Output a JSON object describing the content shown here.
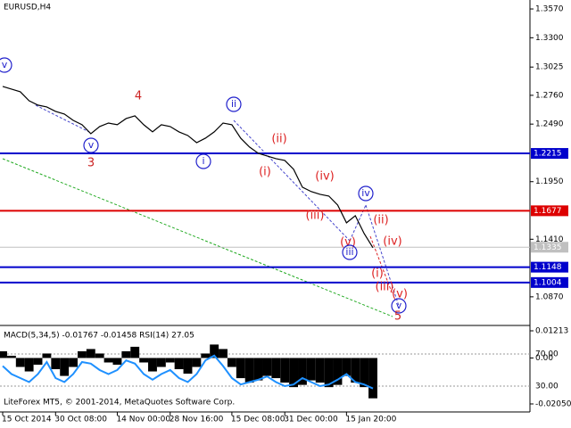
{
  "chart_data": [
    {
      "type": "line",
      "title": "EURUSD,H4",
      "categories": [
        "15 Oct 2014",
        null,
        null,
        null,
        null,
        null,
        "30 Oct 08:00",
        null,
        null,
        null,
        null,
        null,
        null,
        "14 Nov 00:00",
        null,
        null,
        null,
        null,
        null,
        "28 Nov 16:00",
        null,
        null,
        null,
        null,
        null,
        null,
        "15 Dec 08:00",
        null,
        null,
        null,
        null,
        null,
        "31 Dec 00:00",
        null,
        null,
        null,
        null,
        null,
        null,
        "15 Jan 20:00",
        null,
        null,
        null
      ],
      "values": [
        1.2843,
        1.2818,
        1.2793,
        1.2709,
        1.2668,
        1.2651,
        1.2609,
        1.2584,
        1.2525,
        1.2484,
        1.24,
        1.2467,
        1.25,
        1.2484,
        1.2542,
        1.2567,
        1.2484,
        1.2417,
        1.2484,
        1.2467,
        1.2417,
        1.2383,
        1.2316,
        1.2358,
        1.2417,
        1.25,
        1.2484,
        1.2358,
        1.2275,
        1.2216,
        1.2191,
        1.2166,
        1.2149,
        1.2066,
        1.1898,
        1.1857,
        1.1831,
        1.1815,
        1.1731,
        1.1564,
        1.1631,
        1.1464,
        1.133
      ],
      "color": "#000000",
      "ylim": [
        1.0618,
        1.3654
      ],
      "yticks": [
        {
          "value": 1.357,
          "label": "1.3570"
        },
        {
          "value": 1.33,
          "label": "1.3300"
        },
        {
          "value": 1.3025,
          "label": "1.3025"
        },
        {
          "value": 1.276,
          "label": "1.2760"
        },
        {
          "value": 1.249,
          "label": "1.2490"
        },
        {
          "value": 1.195,
          "label": "1.1950"
        },
        {
          "value": 1.141,
          "label": "1.1410"
        },
        {
          "value": 1.087,
          "label": "1.0870"
        }
      ],
      "levels": [
        {
          "value": 1.2215,
          "color": "#0000cc"
        },
        {
          "value": 1.1677,
          "color": "#dd0000"
        },
        {
          "value": 1.1148,
          "color": "#0000cc"
        },
        {
          "value": 1.1004,
          "color": "#0000cc"
        },
        {
          "value": 1.1335,
          "color": "#c0c0c0"
        }
      ],
      "annotations": [
        {
          "text": "v",
          "color": "#2020cc",
          "circled": true
        },
        {
          "text": "4",
          "color": "#cc2222",
          "circled": false
        },
        {
          "text": "v",
          "color": "#2020cc",
          "circled": true
        },
        {
          "text": "3",
          "color": "#cc2222",
          "circled": false
        },
        {
          "text": "ii",
          "color": "#2020cc",
          "circled": true
        },
        {
          "text": "i",
          "color": "#2020cc",
          "circled": true
        },
        {
          "text": "(ii)",
          "color": "#dd2222",
          "circled": false
        },
        {
          "text": "(i)",
          "color": "#dd2222",
          "circled": false
        },
        {
          "text": "(iv)",
          "color": "#dd2222",
          "circled": false
        },
        {
          "text": "(iii)",
          "color": "#dd2222",
          "circled": false
        },
        {
          "text": "iv",
          "color": "#2020cc",
          "circled": true
        },
        {
          "text": "(ii)",
          "color": "#dd2222",
          "circled": false
        },
        {
          "text": "(v)",
          "color": "#dd2222",
          "circled": false
        },
        {
          "text": "iii",
          "color": "#2020cc",
          "circled": true
        },
        {
          "text": "(iv)",
          "color": "#dd2222",
          "circled": false
        },
        {
          "text": "(i)",
          "color": "#dd2222",
          "circled": false
        },
        {
          "text": "(iii)",
          "color": "#dd2222",
          "circled": false
        },
        {
          "text": "(v)",
          "color": "#dd2222",
          "circled": false
        },
        {
          "text": "v",
          "color": "#2020cc",
          "circled": true
        },
        {
          "text": "5",
          "color": "#cc2222",
          "circled": false
        }
      ]
    },
    {
      "type": "bar",
      "title": "MACD(5,34,5) -0.01767 -0.01458 RSI(14) 27.05",
      "footer": "LiteForex MT5, © 2001-2014, MetaQuotes Software Corp.",
      "ylim": [
        -0.02329,
        0.01372
      ],
      "yticks": [
        {
          "value": 0.01213,
          "label": "0.01213"
        },
        {
          "value": 0,
          "label": "0.00"
        },
        {
          "value": -0.0205,
          "label": "-0.02050"
        }
      ],
      "y2lim": [
        0,
        103.3
      ],
      "y2ticks": [
        {
          "value": 70,
          "label": "70.00"
        },
        {
          "value": 30,
          "label": "30.00"
        }
      ],
      "series": [
        {
          "color": "#000000",
          "values": [
            0.003,
            0.001,
            -0.004,
            -0.006,
            -0.003,
            0.002,
            -0.005,
            -0.008,
            -0.004,
            0.003,
            0.004,
            0.002,
            -0.002,
            -0.003,
            0.003,
            0.005,
            -0.002,
            -0.006,
            -0.004,
            -0.002,
            -0.005,
            -0.007,
            -0.004,
            0.002,
            0.006,
            0.004,
            -0.004,
            -0.009,
            -0.011,
            -0.01,
            -0.008,
            -0.009,
            -0.011,
            -0.013,
            -0.012,
            -0.01,
            -0.011,
            -0.013,
            -0.012,
            -0.008,
            -0.011,
            -0.013,
            -0.018
          ]
        },
        {
          "color": "#1e90ff",
          "axis": "y2",
          "values": [
            55,
            45,
            40,
            35,
            45,
            60,
            40,
            35,
            45,
            60,
            58,
            50,
            45,
            50,
            62,
            58,
            45,
            38,
            45,
            50,
            40,
            35,
            45,
            62,
            68,
            55,
            40,
            32,
            35,
            38,
            42,
            35,
            30,
            32,
            40,
            35,
            30,
            32,
            38,
            45,
            35,
            32,
            27
          ]
        }
      ]
    }
  ]
}
